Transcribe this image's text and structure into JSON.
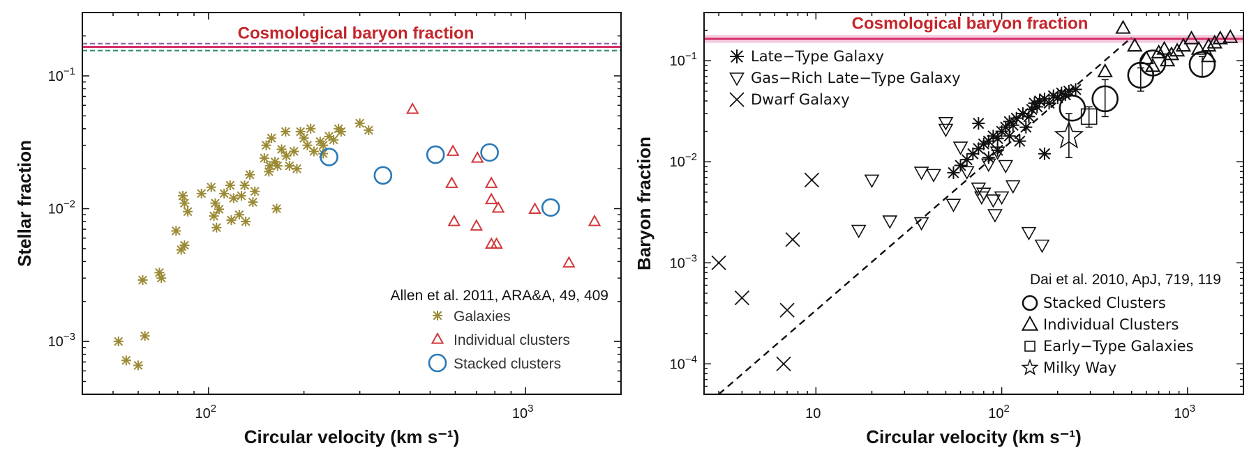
{
  "chart_data": [
    {
      "type": "scatter",
      "xlabel": "Circular velocity (km s⁻¹)",
      "ylabel": "Stellar fraction",
      "xscale": "log",
      "yscale": "log",
      "xlim": [
        40,
        2000
      ],
      "ylim": [
        0.0004,
        0.3
      ],
      "x_ticks": [
        {
          "value": 100,
          "label": "10",
          "exp": "2"
        },
        {
          "value": 1000,
          "label": "10",
          "exp": "3"
        }
      ],
      "y_ticks": [
        {
          "value": 0.001,
          "label": "10",
          "exp": "−3"
        },
        {
          "value": 0.01,
          "label": "10",
          "exp": "−2"
        },
        {
          "value": 0.1,
          "label": "10",
          "exp": "−1"
        }
      ],
      "band": {
        "label": "Cosmological baryon fraction",
        "center": 0.165,
        "low": 0.155,
        "high": 0.175
      },
      "citation": "Allen et al. 2011, ARA&A, 49, 409",
      "legend_position": "bottom-right",
      "series": [
        {
          "name": "Galaxies",
          "marker": "asterisk",
          "color": "#9b8a35",
          "points": [
            [
              52,
              0.001
            ],
            [
              55,
              0.00072
            ],
            [
              60,
              0.00066
            ],
            [
              63,
              0.0011
            ],
            [
              62,
              0.0029
            ],
            [
              70,
              0.0033
            ],
            [
              71,
              0.003
            ],
            [
              79,
              0.0068
            ],
            [
              82,
              0.0049
            ],
            [
              84,
              0.0053
            ],
            [
              83,
              0.0125
            ],
            [
              86,
              0.0095
            ],
            [
              84,
              0.011
            ],
            [
              95,
              0.013
            ],
            [
              102,
              0.0145
            ],
            [
              104,
              0.0088
            ],
            [
              108,
              0.0099
            ],
            [
              105,
              0.011
            ],
            [
              106,
              0.0072
            ],
            [
              112,
              0.013
            ],
            [
              117,
              0.015
            ],
            [
              120,
              0.012
            ],
            [
              118,
              0.0082
            ],
            [
              125,
              0.009
            ],
            [
              127,
              0.0125
            ],
            [
              130,
              0.015
            ],
            [
              131,
              0.008
            ],
            [
              135,
              0.018
            ],
            [
              140,
              0.0135
            ],
            [
              138,
              0.0112
            ],
            [
              150,
              0.024
            ],
            [
              152,
              0.03
            ],
            [
              156,
              0.021
            ],
            [
              155,
              0.019
            ],
            [
              158,
              0.034
            ],
            [
              162,
              0.0225
            ],
            [
              165,
              0.021
            ],
            [
              164,
              0.01
            ],
            [
              170,
              0.028
            ],
            [
              176,
              0.025
            ],
            [
              175,
              0.038
            ],
            [
              180,
              0.021
            ],
            [
              186,
              0.027
            ],
            [
              190,
              0.02
            ],
            [
              195,
              0.038
            ],
            [
              200,
              0.034
            ],
            [
              205,
              0.03
            ],
            [
              210,
              0.04
            ],
            [
              215,
              0.027
            ],
            [
              225,
              0.032
            ],
            [
              230,
              0.03
            ],
            [
              240,
              0.035
            ],
            [
              248,
              0.033
            ],
            [
              257,
              0.04
            ],
            [
              262,
              0.038
            ],
            [
              300,
              0.044
            ],
            [
              320,
              0.039
            ],
            [
              230,
              0.026
            ]
          ]
        },
        {
          "name": "Individual clusters",
          "marker": "triangle",
          "color": "#d1373b",
          "points": [
            [
              440,
              0.056
            ],
            [
              590,
              0.027
            ],
            [
              705,
              0.024
            ],
            [
              585,
              0.0155
            ],
            [
              780,
              0.0155
            ],
            [
              780,
              0.0117
            ],
            [
              820,
              0.0101
            ],
            [
              595,
              0.008
            ],
            [
              700,
              0.0074
            ],
            [
              780,
              0.0054
            ],
            [
              810,
              0.0054
            ],
            [
              1070,
              0.0099
            ],
            [
              1370,
              0.0039
            ],
            [
              1650,
              0.008
            ]
          ]
        },
        {
          "name": "Stacked clusters",
          "marker": "circle",
          "color": "#2878b7",
          "points": [
            [
              240,
              0.0245
            ],
            [
              355,
              0.0178
            ],
            [
              520,
              0.0255
            ],
            [
              770,
              0.0265
            ],
            [
              1200,
              0.0102
            ]
          ]
        }
      ]
    },
    {
      "type": "scatter",
      "xlabel": "Circular velocity (km s⁻¹)",
      "ylabel": "Baryon fraction",
      "xscale": "log",
      "yscale": "log",
      "xlim": [
        2.5,
        2000
      ],
      "ylim": [
        5e-05,
        0.3
      ],
      "x_ticks": [
        {
          "value": 10,
          "label": "10",
          "exp": ""
        },
        {
          "value": 100,
          "label": "10",
          "exp": "2"
        },
        {
          "value": 1000,
          "label": "10",
          "exp": "3"
        }
      ],
      "y_ticks": [
        {
          "value": 0.0001,
          "label": "10",
          "exp": "−4"
        },
        {
          "value": 0.001,
          "label": "10",
          "exp": "−3"
        },
        {
          "value": 0.01,
          "label": "10",
          "exp": "−2"
        },
        {
          "value": 0.1,
          "label": "10",
          "exp": "−1"
        }
      ],
      "band": {
        "label": "Cosmological baryon fraction",
        "center": 0.165,
        "low": 0.15,
        "high": 0.18
      },
      "citation": "Dai et al. 2010, ApJ, 719, 119",
      "fit_line": {
        "style": "dashed",
        "points": [
          [
            3,
            5e-05
          ],
          [
            500,
            0.17
          ]
        ]
      },
      "legend_position": "top-left and bottom-right",
      "series": [
        {
          "name": "Late−Type Galaxy",
          "marker": "asterisk",
          "color": "#111111",
          "points": [
            [
              55,
              0.0078
            ],
            [
              60,
              0.0092
            ],
            [
              65,
              0.0105
            ],
            [
              70,
              0.012
            ],
            [
              75,
              0.0135
            ],
            [
              80,
              0.015
            ],
            [
              85,
              0.016
            ],
            [
              90,
              0.018
            ],
            [
              95,
              0.017
            ],
            [
              100,
              0.02
            ],
            [
              105,
              0.022
            ],
            [
              110,
              0.025
            ],
            [
              115,
              0.023
            ],
            [
              120,
              0.027
            ],
            [
              130,
              0.03
            ],
            [
              140,
              0.028
            ],
            [
              145,
              0.033
            ],
            [
              150,
              0.038
            ],
            [
              155,
              0.035
            ],
            [
              160,
              0.04
            ],
            [
              170,
              0.042
            ],
            [
              180,
              0.038
            ],
            [
              190,
              0.045
            ],
            [
              200,
              0.043
            ],
            [
              210,
              0.048
            ],
            [
              220,
              0.046
            ],
            [
              230,
              0.05
            ],
            [
              250,
              0.052
            ],
            [
              75,
              0.024
            ],
            [
              110,
              0.018
            ],
            [
              125,
              0.016
            ],
            [
              95,
              0.013
            ],
            [
              85,
              0.011
            ],
            [
              170,
              0.012
            ],
            [
              135,
              0.022
            ]
          ]
        },
        {
          "name": "Gas−Rich Late−Type Galaxy",
          "marker": "triangle-down",
          "color": "#111111",
          "points": [
            [
              17,
              0.0021
            ],
            [
              20,
              0.0066
            ],
            [
              25,
              0.0026
            ],
            [
              37,
              0.0025
            ],
            [
              37,
              0.0079
            ],
            [
              43,
              0.0075
            ],
            [
              50,
              0.0245
            ],
            [
              50,
              0.021
            ],
            [
              55,
              0.0038
            ],
            [
              60,
              0.014
            ],
            [
              65,
              0.008
            ],
            [
              75,
              0.0055
            ],
            [
              80,
              0.0049
            ],
            [
              78,
              0.0045
            ],
            [
              90,
              0.0042
            ],
            [
              92,
              0.003
            ],
            [
              100,
              0.0045
            ],
            [
              105,
              0.0092
            ],
            [
              115,
              0.0058
            ],
            [
              140,
              0.002
            ],
            [
              165,
              0.0015
            ],
            [
              85,
              0.0095
            ],
            [
              95,
              0.0125
            ]
          ]
        },
        {
          "name": "Dwarf Galaxy",
          "marker": "x",
          "color": "#111111",
          "points": [
            [
              3,
              0.001
            ],
            [
              4,
              0.00045
            ],
            [
              6.7,
              0.0001
            ],
            [
              7,
              0.00034
            ],
            [
              7.5,
              0.0017
            ],
            [
              9.5,
              0.0066
            ]
          ]
        },
        {
          "name": "Stacked Clusters",
          "marker": "circle",
          "color": "#111111",
          "points": [
            [
              240,
              0.034
            ],
            [
              360,
              0.042
            ],
            [
              560,
              0.072
            ],
            [
              650,
              0.095
            ],
            [
              1200,
              0.092
            ]
          ]
        },
        {
          "name": "Individual Clusters",
          "marker": "triangle",
          "color": "#111111",
          "points": [
            [
              360,
              0.078
            ],
            [
              450,
              0.21
            ],
            [
              520,
              0.14
            ],
            [
              600,
              0.105
            ],
            [
              650,
              0.088
            ],
            [
              700,
              0.12
            ],
            [
              750,
              0.13
            ],
            [
              780,
              0.1
            ],
            [
              820,
              0.115
            ],
            [
              880,
              0.125
            ],
            [
              950,
              0.14
            ],
            [
              1050,
              0.165
            ],
            [
              1150,
              0.13
            ],
            [
              1300,
              0.11
            ],
            [
              1400,
              0.15
            ],
            [
              1500,
              0.165
            ],
            [
              1700,
              0.17
            ],
            [
              1300,
              0.14
            ]
          ]
        },
        {
          "name": "Early−Type Galaxies",
          "marker": "square",
          "color": "#111111",
          "points": [
            [
              295,
              0.028
            ]
          ]
        },
        {
          "name": "Milky Way",
          "marker": "star",
          "color": "#111111",
          "points": [
            [
              230,
              0.018
            ]
          ]
        }
      ]
    }
  ]
}
